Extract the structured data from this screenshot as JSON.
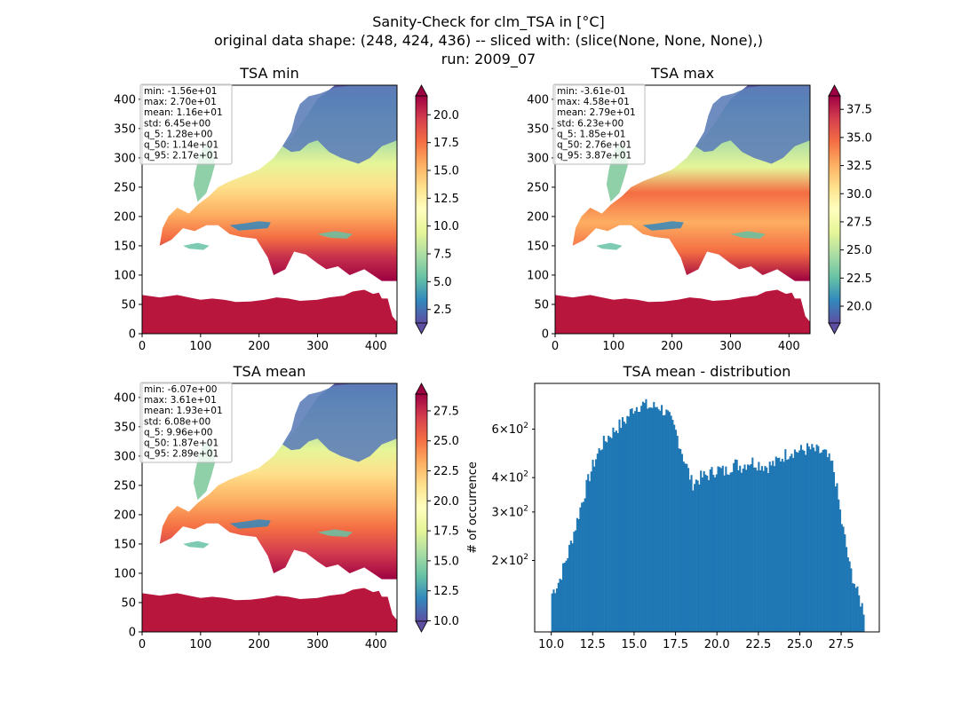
{
  "figure": {
    "title_line1": "Sanity-Check for clm_TSA in [°C]",
    "title_line2": "original data shape: (248, 424, 436) -- sliced with: (slice(None, None, None),)",
    "title_line3": "run: 2009_07"
  },
  "colors": {
    "histogram_bar": "#1f77b4",
    "colormap": [
      "#5e4fa2",
      "#3288bd",
      "#66c2a5",
      "#abdda4",
      "#e6f598",
      "#ffffbf",
      "#fee08b",
      "#fdae61",
      "#f46d43",
      "#d53e4f",
      "#9e0142"
    ],
    "stats_box_border": "#bbbbbb"
  },
  "chart_data": [
    {
      "type": "heatmap",
      "title": "TSA min",
      "xlim": [
        0,
        436
      ],
      "ylim": [
        0,
        424
      ],
      "x_ticks": [
        "0",
        "100",
        "200",
        "300",
        "400"
      ],
      "y_ticks": [
        "0",
        "50",
        "100",
        "150",
        "200",
        "250",
        "300",
        "350",
        "400"
      ],
      "colorbar": {
        "min": 1.28,
        "max": 21.7,
        "ticks": [
          "2.5",
          "5.0",
          "7.5",
          "10.0",
          "12.5",
          "15.0",
          "17.5",
          "20.0"
        ],
        "extend": "both",
        "cmap": "Spectral_r"
      },
      "stats": [
        "min: -1.56e+01",
        "max: 2.70e+01",
        "mean: 1.16e+01",
        "std: 6.45e+00",
        "q_5: 1.28e+00",
        "q_50: 1.14e+01",
        "q_95: 2.17e+01"
      ]
    },
    {
      "type": "heatmap",
      "title": "TSA max",
      "xlim": [
        0,
        436
      ],
      "ylim": [
        0,
        424
      ],
      "x_ticks": [
        "0",
        "100",
        "200",
        "300",
        "400"
      ],
      "y_ticks": [
        "0",
        "50",
        "100",
        "150",
        "200",
        "250",
        "300",
        "350",
        "400"
      ],
      "colorbar": {
        "min": 18.5,
        "max": 38.7,
        "ticks": [
          "20.0",
          "22.5",
          "25.0",
          "27.5",
          "30.0",
          "32.5",
          "35.0",
          "37.5"
        ],
        "extend": "both",
        "cmap": "Spectral_r"
      },
      "stats": [
        "min: -3.61e-01",
        "max: 4.58e+01",
        "mean: 2.79e+01",
        "std: 6.23e+00",
        "q_5: 1.85e+01",
        "q_50: 2.76e+01",
        "q_95: 3.87e+01"
      ]
    },
    {
      "type": "heatmap",
      "title": "TSA mean",
      "xlim": [
        0,
        436
      ],
      "ylim": [
        0,
        424
      ],
      "x_ticks": [
        "0",
        "100",
        "200",
        "300",
        "400"
      ],
      "y_ticks": [
        "0",
        "50",
        "100",
        "150",
        "200",
        "250",
        "300",
        "350",
        "400"
      ],
      "colorbar": {
        "min": 9.96,
        "max": 28.9,
        "ticks": [
          "10.0",
          "12.5",
          "15.0",
          "17.5",
          "20.0",
          "22.5",
          "25.0",
          "27.5"
        ],
        "extend": "both",
        "cmap": "Spectral_r"
      },
      "stats": [
        "min: -6.07e+00",
        "max: 3.61e+01",
        "mean: 1.93e+01",
        "std: 6.08e+00",
        "q_5: 9.96e+00",
        "q_50: 1.87e+01",
        "q_95: 2.89e+01"
      ]
    },
    {
      "type": "bar",
      "subtype": "histogram",
      "title": "TSA mean - distribution",
      "ylabel": "# of occurrence",
      "xlabel": "",
      "yscale": "log",
      "xlim": [
        9.0,
        29.8
      ],
      "ylim": [
        110,
        880
      ],
      "x_ticks": [
        "10.0",
        "12.5",
        "15.0",
        "17.5",
        "20.0",
        "22.5",
        "25.0",
        "27.5"
      ],
      "y_ticks": [
        {
          "base": "2",
          "value": 200
        },
        {
          "base": "3",
          "value": 300
        },
        {
          "base": "4",
          "value": 400
        },
        {
          "base": "6",
          "value": 600
        }
      ],
      "y_tick_exponent": "2",
      "profile_x": [
        10.0,
        10.5,
        11.0,
        11.5,
        12.0,
        12.5,
        13.0,
        13.5,
        14.0,
        14.5,
        15.0,
        15.5,
        16.0,
        16.5,
        17.0,
        17.5,
        18.0,
        18.5,
        19.0,
        19.5,
        20.0,
        20.5,
        21.0,
        21.5,
        22.0,
        22.5,
        23.0,
        23.5,
        24.0,
        24.5,
        25.0,
        25.5,
        26.0,
        26.5,
        27.0,
        27.5,
        28.0,
        28.5,
        28.9
      ],
      "profile_y": [
        150,
        170,
        210,
        270,
        350,
        440,
        520,
        570,
        610,
        650,
        720,
        740,
        720,
        730,
        680,
        590,
        470,
        380,
        400,
        410,
        430,
        420,
        450,
        440,
        460,
        450,
        440,
        450,
        480,
        500,
        500,
        510,
        500,
        490,
        440,
        280,
        190,
        150,
        130
      ],
      "bins": 200
    }
  ]
}
